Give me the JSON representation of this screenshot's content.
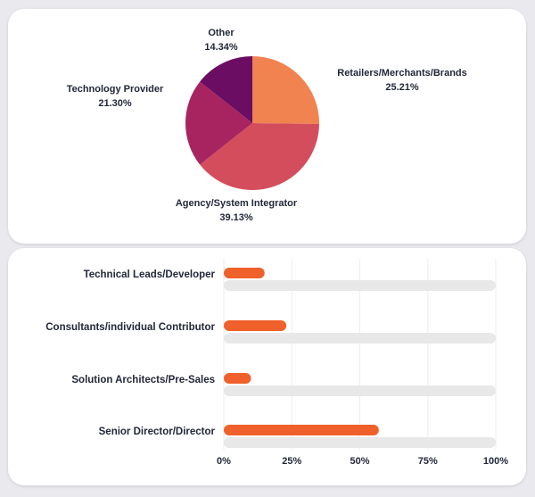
{
  "chart_data": [
    {
      "type": "pie",
      "title": "",
      "slices": [
        {
          "label": "Retailers/Merchants/Brands",
          "value_label": "25.21%",
          "value": 25.21,
          "color": "#f0834f"
        },
        {
          "label": "Agency/System Integrator",
          "value_label": "39.13%",
          "value": 39.13,
          "color": "#d44d5c"
        },
        {
          "label": "Technology Provider",
          "value_label": "21.30%",
          "value": 21.3,
          "color": "#a82461"
        },
        {
          "label": "Other",
          "value_label": "14.34%",
          "value": 14.34,
          "color": "#6b0d62"
        }
      ]
    },
    {
      "type": "bar",
      "orientation": "horizontal",
      "title": "",
      "categories": [
        "Technical Leads/Developer",
        "Consultants/individual Contributor",
        "Solution Architects/Pre-Sales",
        "Senior Director/Director"
      ],
      "values": [
        15,
        23,
        10,
        57
      ],
      "xlim": [
        0,
        100
      ],
      "xticks": [
        "0%",
        "25%",
        "50%",
        "75%",
        "100%"
      ],
      "bar_color": "#f0602a",
      "track_color": "#e8e8e8",
      "grid": true
    }
  ]
}
